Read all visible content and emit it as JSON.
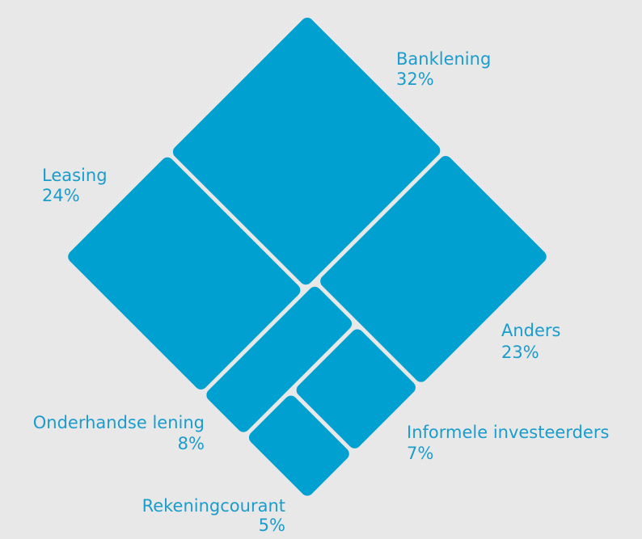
{
  "chart_data": {
    "type": "treemap",
    "categories": [
      "Banklening",
      "Leasing",
      "Anders",
      "Onderhandse lening",
      "Informele investeerders",
      "Rekeningcourant"
    ],
    "values": [
      32,
      24,
      23,
      8,
      7,
      5
    ],
    "value_labels": [
      "32%",
      "24%",
      "23%",
      "8%",
      "7%",
      "5%"
    ],
    "color": "#00a0d0"
  }
}
